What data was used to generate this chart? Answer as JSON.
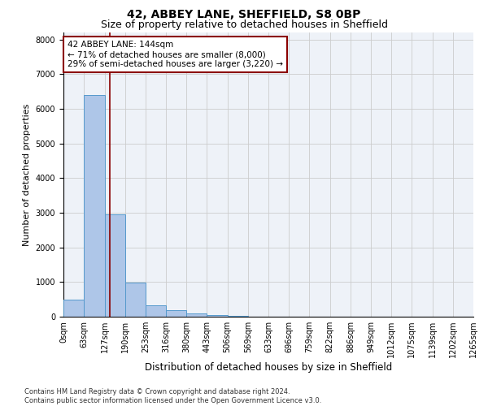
{
  "title1": "42, ABBEY LANE, SHEFFIELD, S8 0BP",
  "title2": "Size of property relative to detached houses in Sheffield",
  "xlabel": "Distribution of detached houses by size in Sheffield",
  "ylabel": "Number of detached properties",
  "footnote": "Contains HM Land Registry data © Crown copyright and database right 2024.\nContains public sector information licensed under the Open Government Licence v3.0.",
  "bin_labels": [
    "0sqm",
    "63sqm",
    "127sqm",
    "190sqm",
    "253sqm",
    "316sqm",
    "380sqm",
    "443sqm",
    "506sqm",
    "569sqm",
    "633sqm",
    "696sqm",
    "759sqm",
    "822sqm",
    "886sqm",
    "949sqm",
    "1012sqm",
    "1075sqm",
    "1139sqm",
    "1202sqm",
    "1265sqm"
  ],
  "bin_edges": [
    0,
    63,
    127,
    190,
    253,
    316,
    380,
    443,
    506,
    569,
    633,
    696,
    759,
    822,
    886,
    949,
    1012,
    1075,
    1139,
    1202,
    1265
  ],
  "bar_heights": [
    500,
    6400,
    2950,
    980,
    330,
    180,
    100,
    50,
    20,
    10,
    8,
    5,
    3,
    2,
    2,
    1,
    1,
    1,
    0,
    0
  ],
  "bar_color": "#aec6e8",
  "bar_edge_color": "#5599cc",
  "property_size": 144,
  "vline_color": "#8b0000",
  "annotation_line1": "42 ABBEY LANE: 144sqm",
  "annotation_line2": "← 71% of detached houses are smaller (8,000)",
  "annotation_line3": "29% of semi-detached houses are larger (3,220) →",
  "annotation_box_color": "#8b0000",
  "annotation_fill": "white",
  "ylim": [
    0,
    8200
  ],
  "yticks": [
    0,
    1000,
    2000,
    3000,
    4000,
    5000,
    6000,
    7000,
    8000
  ],
  "grid_color": "#cccccc",
  "bg_color": "#eef2f8",
  "title1_fontsize": 10,
  "title2_fontsize": 9,
  "xlabel_fontsize": 8.5,
  "ylabel_fontsize": 8,
  "tick_fontsize": 7,
  "annotation_fontsize": 7.5
}
